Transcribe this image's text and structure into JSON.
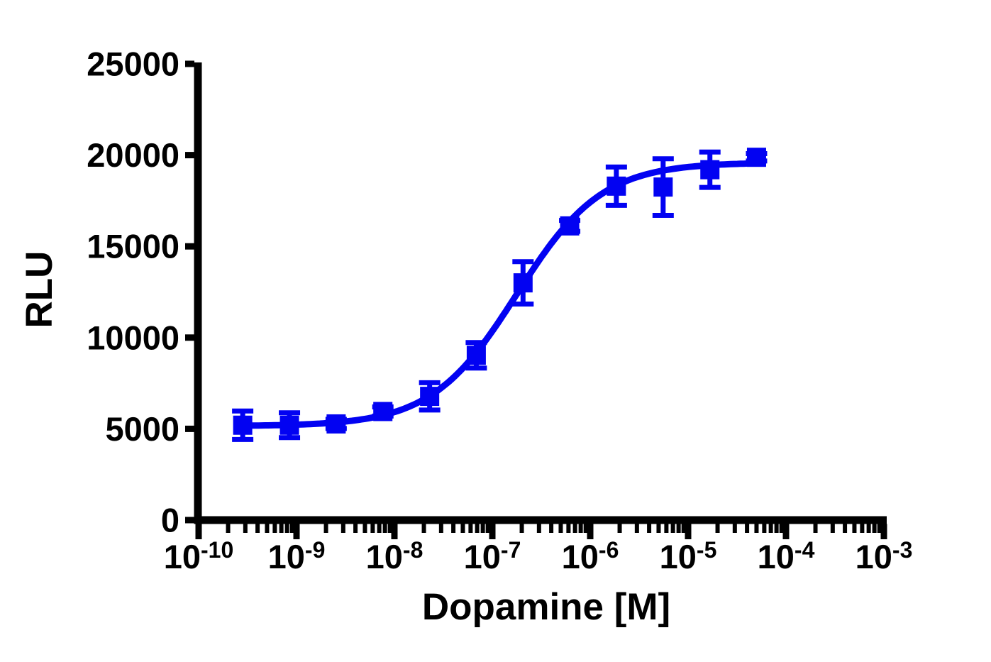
{
  "chart_data": {
    "type": "scatter",
    "subtype": "dose-response-curve",
    "title": "",
    "xlabel": "Dopamine [M]",
    "ylabel": "RLU",
    "x_scale": "log10",
    "x_tick_base": "10",
    "x_tick_exponents": [
      -10,
      -9,
      -8,
      -7,
      -6,
      -5,
      -4,
      -3
    ],
    "x_minor_tick_divisions": [
      2,
      3,
      4,
      5,
      6,
      7,
      8,
      9
    ],
    "yticks": [
      0,
      5000,
      10000,
      15000,
      20000,
      25000
    ],
    "ylim": [
      0,
      25000
    ],
    "grid": false,
    "legend": "none",
    "axis_color": "#000000",
    "background_color": "#ffffff",
    "series": [
      {
        "name": "Dopamine",
        "color": "#0202F2",
        "marker": "filled-square",
        "points": [
          {
            "x": 2.82e-10,
            "y": 5200,
            "err": 780
          },
          {
            "x": 8.47e-10,
            "y": 5200,
            "err": 680
          },
          {
            "x": 2.54e-09,
            "y": 5270,
            "err": 250
          },
          {
            "x": 7.62e-09,
            "y": 5950,
            "err": 250
          },
          {
            "x": 2.29e-08,
            "y": 6780,
            "err": 750
          },
          {
            "x": 6.86e-08,
            "y": 9030,
            "err": 700
          },
          {
            "x": 2.06e-07,
            "y": 13000,
            "err": 1160
          },
          {
            "x": 6.17e-07,
            "y": 16120,
            "err": 300
          },
          {
            "x": 1.85e-06,
            "y": 18300,
            "err": 1050
          },
          {
            "x": 5.56e-06,
            "y": 18250,
            "err": 1550
          },
          {
            "x": 1.67e-05,
            "y": 19200,
            "err": 970
          },
          {
            "x": 5e-05,
            "y": 19880,
            "err": 200
          }
        ],
        "fit": {
          "model": "four-parameter-logistic",
          "bottom": 5150,
          "top": 19600,
          "log_ec50": -6.75,
          "hill": 1.0
        }
      }
    ]
  }
}
